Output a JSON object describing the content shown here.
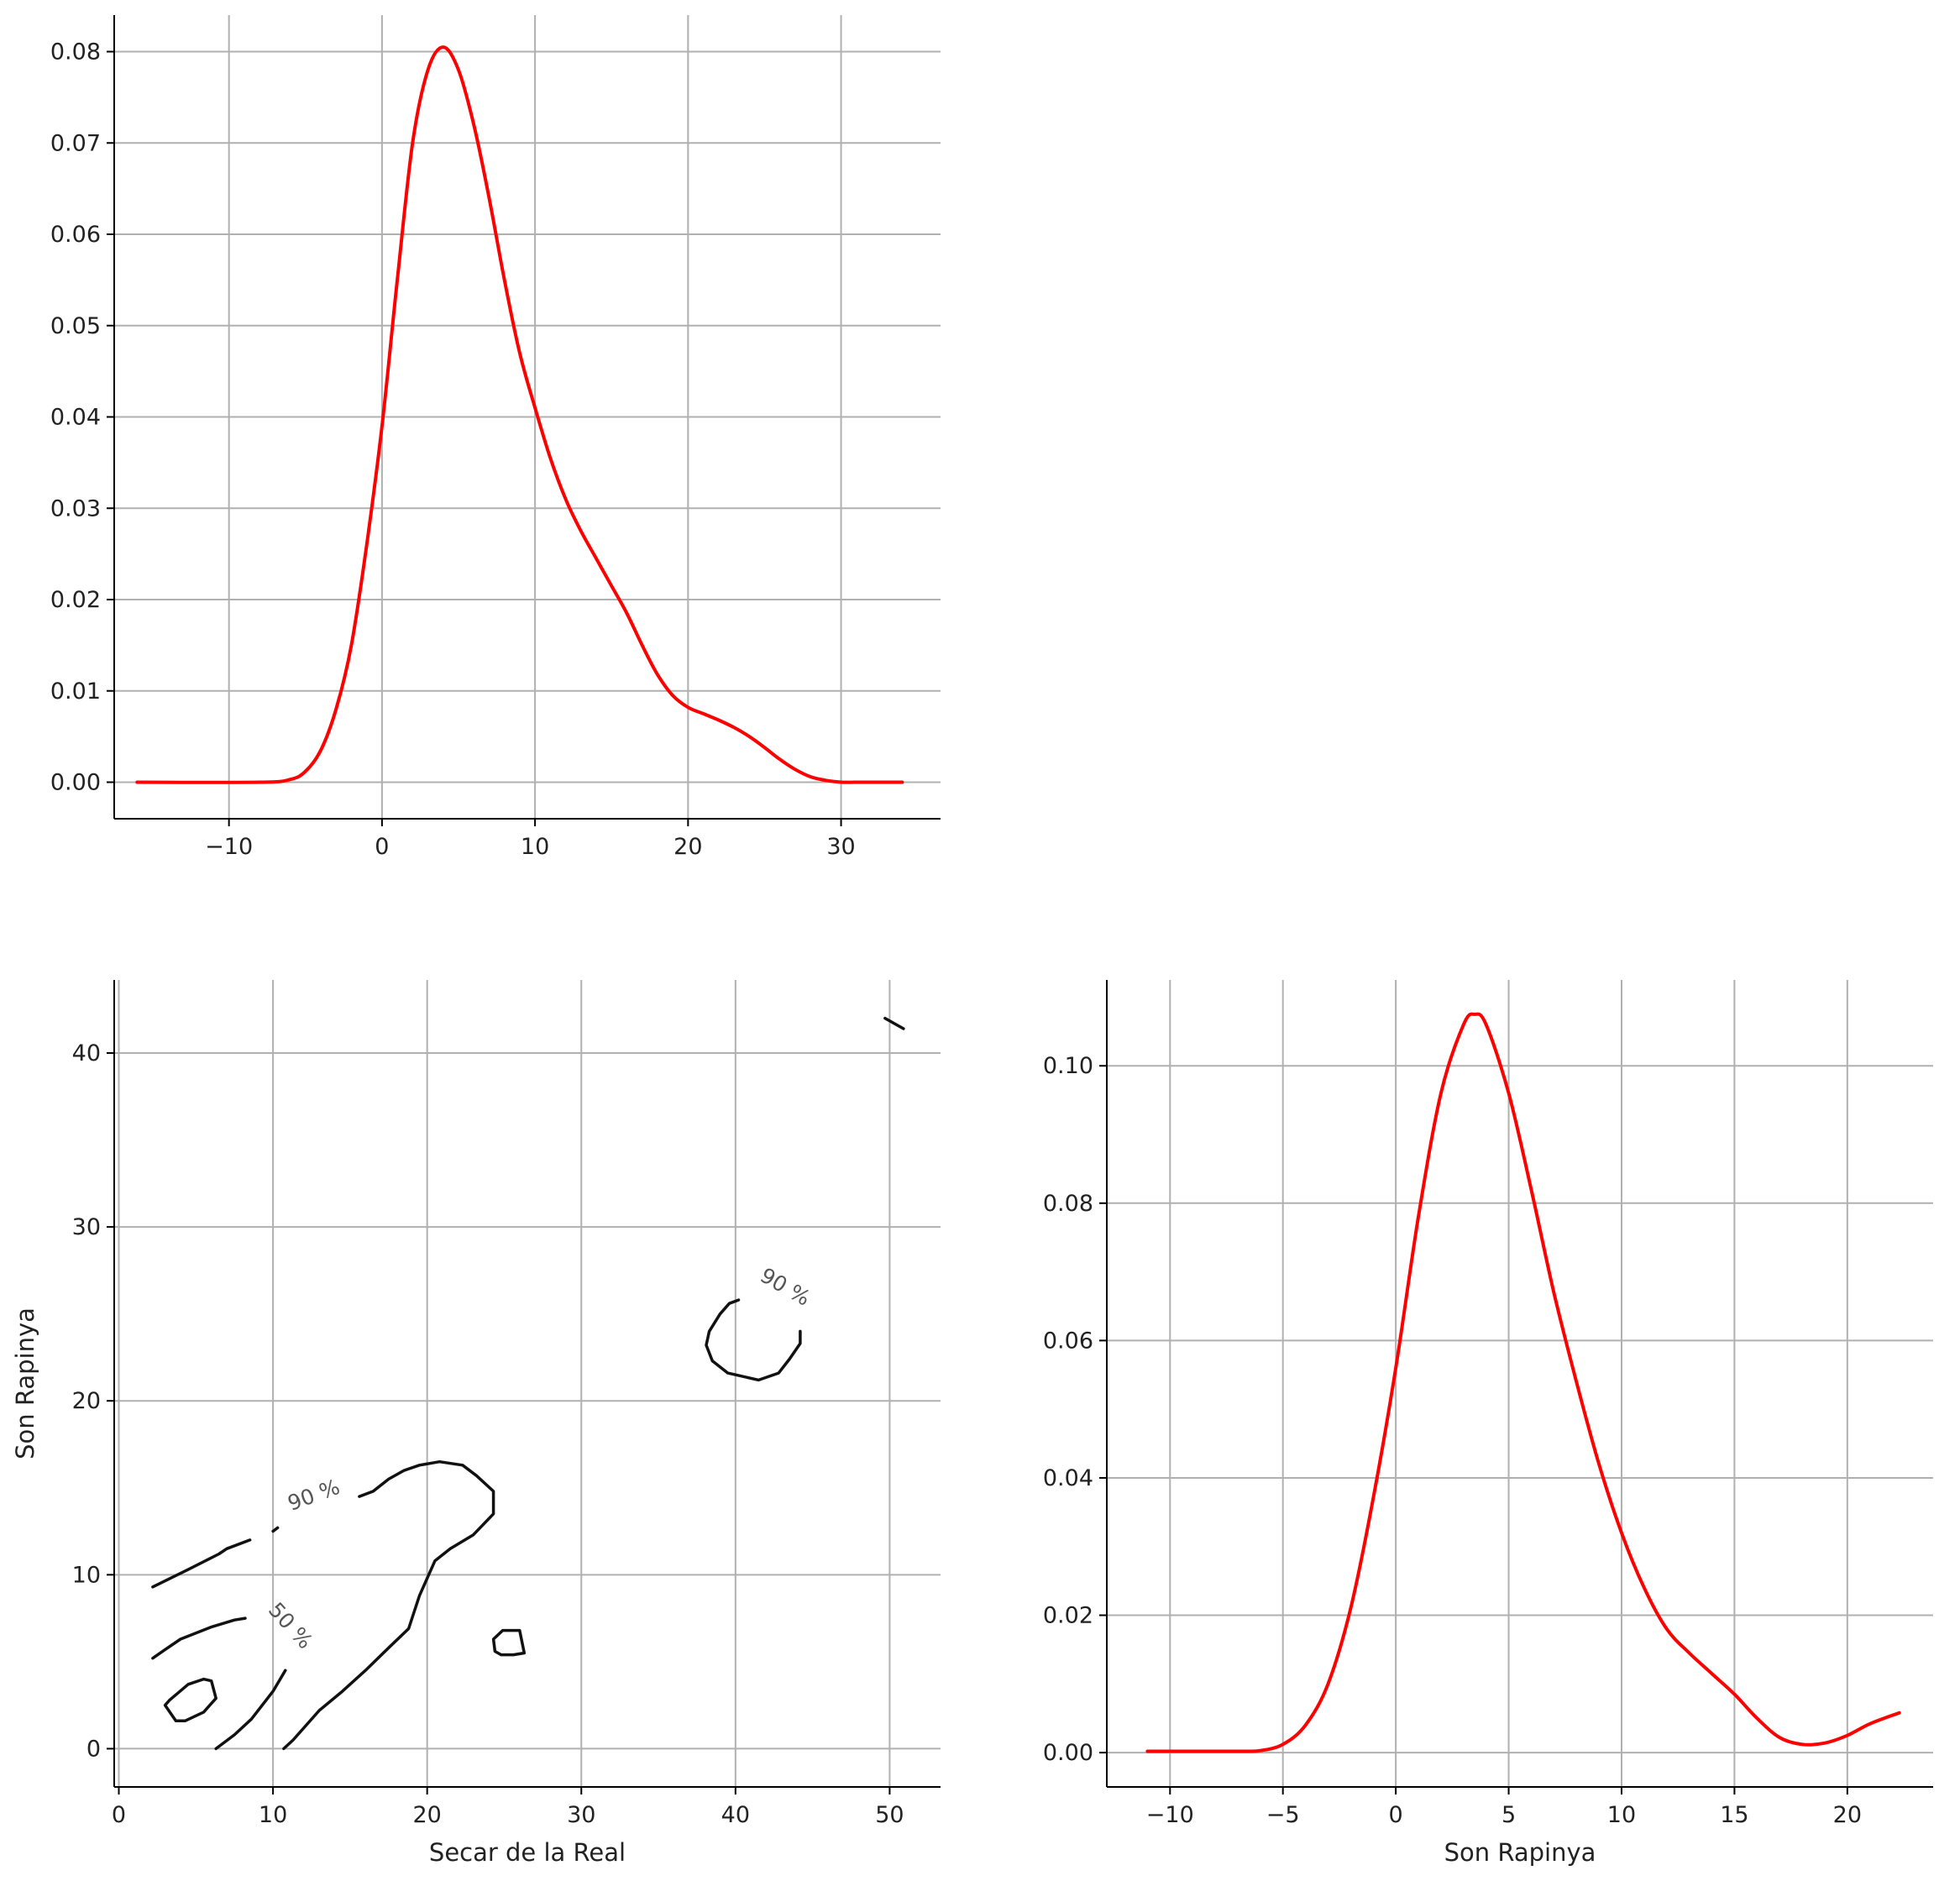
{
  "chart_data": [
    {
      "type": "line",
      "title": "",
      "xlabel": "",
      "ylabel": "",
      "xlim": [
        -17.5,
        36.5
      ],
      "ylim": [
        -0.004,
        0.084
      ],
      "xticks": [
        -10,
        0,
        10,
        20,
        30
      ],
      "xtick_labels": [
        "−10",
        "0",
        "10",
        "20",
        "30"
      ],
      "yticks": [
        0.0,
        0.01,
        0.02,
        0.03,
        0.04,
        0.05,
        0.06,
        0.07,
        0.08
      ],
      "ytick_labels": [
        "0.00",
        "0.01",
        "0.02",
        "0.03",
        "0.04",
        "0.05",
        "0.06",
        "0.07",
        "0.08"
      ],
      "grid": true,
      "color": "#ff0000",
      "series": [
        {
          "x": [
            -16,
            -8,
            -6,
            -5,
            -4,
            -3,
            -2,
            -1,
            0,
            1,
            2,
            3,
            4,
            5,
            6,
            7,
            8,
            9,
            10,
            11,
            12,
            13,
            14,
            15,
            16,
            17,
            18,
            19,
            20,
            21,
            22,
            23,
            24,
            25,
            26,
            27,
            28,
            29,
            30,
            31,
            32,
            34
          ],
          "y": [
            0.0,
            0.0,
            0.0003,
            0.0012,
            0.0035,
            0.008,
            0.015,
            0.026,
            0.039,
            0.055,
            0.07,
            0.078,
            0.0805,
            0.078,
            0.072,
            0.064,
            0.055,
            0.047,
            0.041,
            0.0355,
            0.031,
            0.0275,
            0.0245,
            0.0215,
            0.0185,
            0.015,
            0.0118,
            0.0095,
            0.0082,
            0.0075,
            0.0068,
            0.006,
            0.005,
            0.0038,
            0.0025,
            0.0014,
            0.0006,
            0.0002,
            0.0,
            0.0,
            0.0,
            0.0
          ]
        }
      ]
    },
    {
      "type": "contour",
      "title": "",
      "xlabel": "Secar de la Real",
      "ylabel": "Son Rapinya",
      "xlim": [
        -0.3,
        53.3
      ],
      "ylim": [
        -2.2,
        44.2
      ],
      "xticks": [
        0,
        10,
        20,
        30,
        40,
        50
      ],
      "xtick_labels": [
        "0",
        "10",
        "20",
        "30",
        "40",
        "50"
      ],
      "yticks": [
        0,
        10,
        20,
        30,
        40
      ],
      "ytick_labels": [
        "0",
        "10",
        "20",
        "30",
        "40"
      ],
      "grid": true,
      "color": "#111111",
      "levels": [
        {
          "label": "90 %",
          "label_positions": [
            [
              12.8,
              14.2
            ],
            [
              43.0,
              26.2
            ]
          ],
          "paths": [
            [
              [
                2.2,
                9.3
              ],
              [
                4.5,
                10.3
              ],
              [
                6.5,
                11.2
              ],
              [
                7.0,
                11.5
              ],
              [
                8.5,
                12.0
              ]
            ],
            [
              [
                10.0,
                12.5
              ],
              [
                10.3,
                12.7
              ]
            ],
            [
              [
                15.6,
                14.5
              ],
              [
                16.5,
                14.8
              ],
              [
                17.5,
                15.5
              ],
              [
                18.5,
                16.0
              ],
              [
                19.5,
                16.3
              ],
              [
                20.8,
                16.5
              ],
              [
                22.3,
                16.3
              ],
              [
                23.2,
                15.7
              ],
              [
                24.3,
                14.8
              ],
              [
                24.3,
                13.5
              ],
              [
                23.0,
                12.3
              ],
              [
                21.5,
                11.5
              ],
              [
                20.5,
                10.8
              ],
              [
                19.5,
                8.8
              ],
              [
                18.8,
                6.9
              ],
              [
                17.5,
                5.8
              ],
              [
                16.0,
                4.5
              ],
              [
                14.5,
                3.3
              ],
              [
                13.0,
                2.2
              ],
              [
                11.3,
                0.5
              ],
              [
                10.7,
                0.0
              ]
            ],
            [
              [
                24.8,
                5.4
              ],
              [
                25.6,
                5.4
              ],
              [
                26.3,
                5.5
              ],
              [
                26.0,
                6.8
              ],
              [
                24.9,
                6.8
              ],
              [
                24.3,
                6.3
              ],
              [
                24.4,
                5.6
              ],
              [
                24.8,
                5.4
              ]
            ],
            [
              [
                40.2,
                25.8
              ],
              [
                39.6,
                25.6
              ],
              [
                39.0,
                25.0
              ],
              [
                38.3,
                24.0
              ],
              [
                38.1,
                23.2
              ],
              [
                38.5,
                22.3
              ],
              [
                39.5,
                21.6
              ],
              [
                41.5,
                21.2
              ],
              [
                42.8,
                21.6
              ],
              [
                43.5,
                22.4
              ],
              [
                44.2,
                23.3
              ],
              [
                44.2,
                24.0
              ]
            ],
            [
              [
                49.7,
                42.0
              ],
              [
                50.9,
                41.4
              ]
            ]
          ]
        },
        {
          "label": "50 %",
          "label_positions": [
            [
              10.8,
              6.8
            ]
          ],
          "paths": [
            [
              [
                2.2,
                5.2
              ],
              [
                3.0,
                5.7
              ],
              [
                4.0,
                6.3
              ],
              [
                6.0,
                7.0
              ],
              [
                7.5,
                7.4
              ],
              [
                8.2,
                7.5
              ]
            ],
            [
              [
                10.8,
                4.5
              ],
              [
                10.0,
                3.3
              ],
              [
                8.6,
                1.7
              ],
              [
                7.5,
                0.8
              ],
              [
                6.3,
                0.0
              ]
            ],
            [
              [
                3.3,
                2.8
              ],
              [
                4.5,
                3.7
              ],
              [
                5.5,
                4.0
              ],
              [
                6.0,
                3.9
              ],
              [
                6.3,
                2.9
              ],
              [
                5.5,
                2.1
              ],
              [
                4.3,
                1.6
              ],
              [
                3.7,
                1.6
              ],
              [
                3.0,
                2.5
              ],
              [
                3.3,
                2.8
              ]
            ]
          ]
        }
      ]
    },
    {
      "type": "line",
      "title": "",
      "xlabel": "Son Rapinya",
      "ylabel": "",
      "xlim": [
        -12.8,
        23.8
      ],
      "ylim": [
        -0.005,
        0.1125
      ],
      "xticks": [
        -10,
        -5,
        0,
        5,
        10,
        15,
        20
      ],
      "xtick_labels": [
        "−10",
        "−5",
        "0",
        "5",
        "10",
        "15",
        "20"
      ],
      "yticks": [
        0.0,
        0.02,
        0.04,
        0.06,
        0.08,
        0.1
      ],
      "ytick_labels": [
        "0.00",
        "0.02",
        "0.04",
        "0.06",
        "0.08",
        "0.10"
      ],
      "grid": true,
      "color": "#ff0000",
      "series": [
        {
          "x": [
            -11,
            -7,
            -6,
            -5,
            -4,
            -3,
            -2,
            -1,
            0,
            1,
            2,
            3,
            3.5,
            4,
            5,
            6,
            7,
            8,
            9,
            10,
            11,
            12,
            13,
            14,
            15,
            16,
            17,
            18,
            19,
            20,
            21,
            22.3
          ],
          "y": [
            0.0002,
            0.0002,
            0.0003,
            0.0012,
            0.004,
            0.01,
            0.021,
            0.037,
            0.056,
            0.078,
            0.096,
            0.106,
            0.1075,
            0.106,
            0.096,
            0.082,
            0.067,
            0.054,
            0.042,
            0.032,
            0.024,
            0.018,
            0.0145,
            0.0115,
            0.0085,
            0.005,
            0.0022,
            0.0012,
            0.0014,
            0.0025,
            0.0042,
            0.0058
          ]
        }
      ]
    }
  ]
}
